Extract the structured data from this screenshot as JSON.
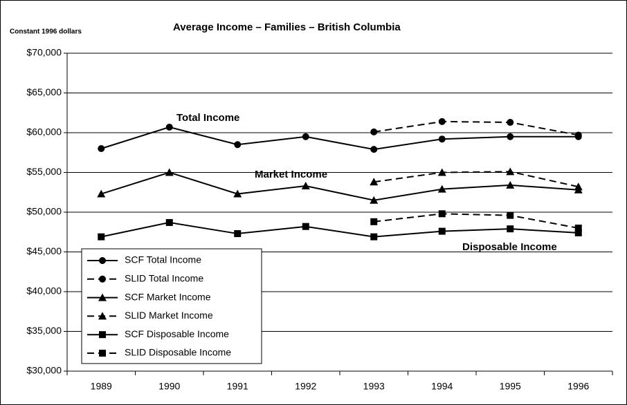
{
  "chart_data": {
    "type": "line",
    "title": "Average Income – Families – British Columbia",
    "subtitle": "Constant 1996 dollars",
    "categories": [
      "1989",
      "1990",
      "1991",
      "1992",
      "1993",
      "1994",
      "1995",
      "1996"
    ],
    "series": [
      {
        "name": "SCF Total Income",
        "color": "#000000",
        "marker": "circle",
        "dash": false,
        "values": [
          58000,
          60700,
          58500,
          59500,
          57900,
          59200,
          59500,
          59500
        ]
      },
      {
        "name": "SLID Total Income",
        "color": "#000000",
        "marker": "circle",
        "dash": true,
        "values": [
          null,
          null,
          null,
          null,
          60100,
          61400,
          61300,
          59700
        ]
      },
      {
        "name": "SCF Market Income",
        "color": "#000000",
        "marker": "triangle",
        "dash": false,
        "values": [
          52300,
          55000,
          52300,
          53300,
          51500,
          52900,
          53400,
          52800
        ]
      },
      {
        "name": "SLID Market Income",
        "color": "#000000",
        "marker": "triangle",
        "dash": true,
        "values": [
          null,
          null,
          null,
          null,
          53800,
          55000,
          55100,
          53200
        ]
      },
      {
        "name": "SCF Disposable Income",
        "color": "#000000",
        "marker": "square",
        "dash": false,
        "values": [
          46900,
          48700,
          47300,
          48200,
          46900,
          47600,
          47900,
          47400
        ]
      },
      {
        "name": "SLID Disposable Income",
        "color": "#000000",
        "marker": "square",
        "dash": true,
        "values": [
          null,
          null,
          null,
          null,
          48800,
          49800,
          49600,
          48000
        ]
      }
    ],
    "annotations": [
      "Total Income",
      "Market Income",
      "Disposable Income"
    ],
    "ylim": [
      30000,
      70000
    ],
    "yticks": [
      {
        "value": 30000,
        "label": "$30,000"
      },
      {
        "value": 35000,
        "label": "$35,000"
      },
      {
        "value": 40000,
        "label": "$40,000"
      },
      {
        "value": 45000,
        "label": "$45,000"
      },
      {
        "value": 50000,
        "label": "$50,000"
      },
      {
        "value": 55000,
        "label": "$55,000"
      },
      {
        "value": 60000,
        "label": "$60,000"
      },
      {
        "value": 65000,
        "label": "$65,000"
      },
      {
        "value": 70000,
        "label": "$70,000"
      }
    ],
    "grid": true,
    "legend": "lower left"
  }
}
